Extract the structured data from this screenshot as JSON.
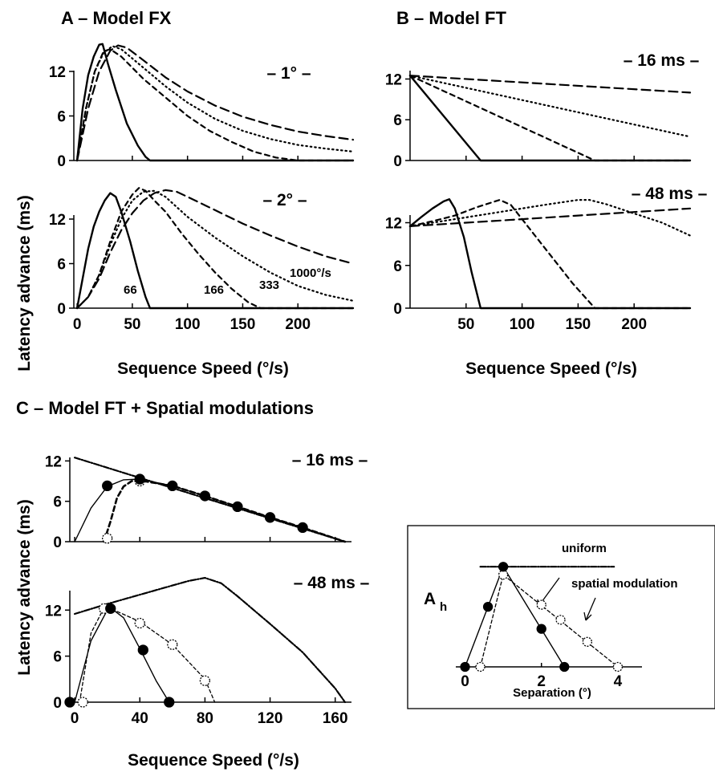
{
  "chart_data": [
    {
      "id": "A",
      "type": "line",
      "title": "A – Model FX",
      "xlabel": "Sequence Speed (°/s)",
      "ylabel": "Latency advance (ms)",
      "xlim": [
        -3,
        250
      ],
      "ylim": [
        0,
        16
      ],
      "xticks": [
        0,
        50,
        100,
        150,
        200
      ],
      "subplots": [
        {
          "label": "– 1° –",
          "yticks": [
            0,
            6,
            12
          ],
          "series": [
            {
              "style": "solid",
              "x": [
                0,
                5,
                10,
                15,
                20,
                23,
                28,
                35,
                45,
                55,
                62,
                66,
                250
              ],
              "y": [
                0,
                7,
                11.5,
                14,
                15.6,
                15.7,
                13,
                9.5,
                5,
                2,
                0.5,
                0,
                0
              ]
            },
            {
              "style": "dashed",
              "x": [
                0,
                8,
                16,
                24,
                30,
                40,
                60,
                80,
                100,
                120,
                140,
                160,
                180,
                200,
                250
              ],
              "y": [
                0,
                7,
                12,
                14.7,
                15,
                14,
                11,
                8.5,
                6,
                4,
                2.5,
                1.2,
                0.4,
                0,
                0
              ]
            },
            {
              "style": "dotted",
              "x": [
                0,
                8,
                16,
                24,
                32,
                40,
                60,
                80,
                100,
                125,
                150,
                175,
                200,
                225,
                250
              ],
              "y": [
                0,
                7,
                12,
                14.5,
                15.4,
                15,
                12.5,
                10,
                7.8,
                5.6,
                4,
                2.9,
                2.1,
                1.6,
                1.2
              ]
            },
            {
              "style": "longdash",
              "x": [
                0,
                10,
                20,
                30,
                37,
                45,
                60,
                80,
                100,
                125,
                150,
                175,
                200,
                225,
                250
              ],
              "y": [
                0,
                7,
                12,
                14.8,
                15.5,
                15.2,
                13.5,
                11.2,
                9.3,
                7.4,
                5.9,
                4.8,
                3.9,
                3.3,
                2.8
              ]
            }
          ]
        },
        {
          "label": "– 2° –",
          "yticks": [
            0,
            6,
            12
          ],
          "annotations": [
            "66",
            "166",
            "333",
            "1000°/s"
          ],
          "series": [
            {
              "style": "solid",
              "x": [
                0,
                5,
                10,
                15,
                20,
                25,
                30,
                35,
                40,
                48,
                55,
                62,
                66,
                250
              ],
              "y": [
                0,
                4,
                8,
                11,
                13,
                14.5,
                15.5,
                15,
                13,
                9,
                5,
                1.5,
                0,
                0
              ]
            },
            {
              "style": "dashed",
              "x": [
                0,
                10,
                20,
                30,
                40,
                50,
                56,
                62,
                70,
                80,
                95,
                110,
                125,
                140,
                155,
                166,
                250
              ],
              "y": [
                0,
                1.5,
                4.5,
                9,
                13,
                15.3,
                16.2,
                15.8,
                14.5,
                13,
                10,
                7.3,
                4.8,
                2.6,
                0.8,
                0,
                0
              ]
            },
            {
              "style": "dotted",
              "x": [
                0,
                10,
                20,
                30,
                40,
                50,
                60,
                70,
                80,
                100,
                125,
                150,
                175,
                200,
                225,
                250
              ],
              "y": [
                0,
                1.5,
                4.5,
                8.5,
                12,
                14.5,
                15.7,
                15.8,
                15,
                12.3,
                9.5,
                7,
                4.8,
                3,
                1.8,
                1
              ]
            },
            {
              "style": "longdash",
              "x": [
                0,
                10,
                20,
                30,
                40,
                50,
                60,
                70,
                80,
                90,
                100,
                125,
                150,
                175,
                200,
                225,
                250
              ],
              "y": [
                0,
                1.5,
                4,
                7.5,
                10.5,
                12.8,
                14.5,
                15.5,
                15.9,
                15.7,
                15,
                13.2,
                11.4,
                9.8,
                8.3,
                7,
                6
              ]
            }
          ]
        }
      ]
    },
    {
      "id": "B",
      "type": "line",
      "title": "B – Model FT",
      "xlabel": "Sequence Speed (°/s)",
      "xlim": [
        0,
        250
      ],
      "ylim": [
        0,
        16
      ],
      "xticks": [
        50,
        100,
        150,
        200
      ],
      "subplots": [
        {
          "label": "– 16 ms –",
          "yticks": [
            0,
            6,
            12
          ],
          "ylim": [
            0,
            13
          ],
          "series": [
            {
              "style": "solid",
              "x": [
                0,
                63,
                250
              ],
              "y": [
                12.5,
                0,
                0
              ]
            },
            {
              "style": "dashed",
              "x": [
                0,
                165,
                250
              ],
              "y": [
                12.5,
                0,
                0
              ]
            },
            {
              "style": "dotted",
              "x": [
                0,
                250
              ],
              "y": [
                12.5,
                3.5
              ]
            },
            {
              "style": "longdash",
              "x": [
                0,
                250
              ],
              "y": [
                12.5,
                10
              ]
            }
          ]
        },
        {
          "label": "– 48 ms –",
          "yticks": [
            0,
            6,
            12
          ],
          "ylim": [
            0,
            16
          ],
          "series": [
            {
              "style": "solid",
              "x": [
                0,
                10,
                20,
                30,
                35,
                40,
                48,
                55,
                63,
                250
              ],
              "y": [
                11.5,
                12.8,
                14,
                15,
                15.3,
                14,
                10,
                5,
                0,
                0
              ]
            },
            {
              "style": "dashed",
              "x": [
                0,
                20,
                40,
                60,
                80,
                90,
                100,
                115,
                130,
                145,
                165,
                250
              ],
              "y": [
                11.5,
                12.2,
                13,
                14.2,
                15.2,
                14.5,
                12.5,
                9.5,
                6.5,
                3.5,
                0,
                0
              ]
            },
            {
              "style": "dotted",
              "x": [
                0,
                40,
                80,
                120,
                150,
                160,
                175,
                200,
                225,
                250
              ],
              "y": [
                11.5,
                12.5,
                13.5,
                14.5,
                15.2,
                15.2,
                14.6,
                13.3,
                12,
                10.2
              ]
            },
            {
              "style": "longdash",
              "x": [
                0,
                50,
                100,
                150,
                200,
                250
              ],
              "y": [
                11.5,
                12,
                12.5,
                13,
                13.5,
                14
              ]
            }
          ]
        }
      ]
    },
    {
      "id": "C",
      "type": "line",
      "title": "C – Model FT + Spatial modulations",
      "xlabel": "Sequence Speed (°/s)",
      "ylabel": "Latency advance (ms)",
      "xlim": [
        -3,
        170
      ],
      "ylim": [
        0,
        16
      ],
      "xticks": [
        0,
        40,
        80,
        120,
        160
      ],
      "subplots": [
        {
          "label": "– 16 ms –",
          "yticks": [
            0,
            6,
            12
          ],
          "ylim": [
            0,
            13
          ],
          "series": [
            {
              "style": "dashdot",
              "x": [
                0,
                166
              ],
              "y": [
                12.5,
                0
              ]
            },
            {
              "style": "solid-thin",
              "x": [
                0,
                10,
                20,
                30,
                40,
                60,
                80,
                100,
                120,
                140,
                160,
                166
              ],
              "y": [
                0,
                5,
                8.2,
                9.2,
                9.3,
                8.3,
                6.8,
                5.2,
                3.6,
                2.1,
                0.5,
                0
              ]
            },
            {
              "style": "dashed-thick",
              "x": [
                18,
                22,
                26,
                30,
                35,
                40,
                60,
                80,
                100,
                120,
                140,
                166
              ],
              "y": [
                0,
                3,
                6.5,
                8.2,
                9,
                9.1,
                8.3,
                6.8,
                5.2,
                3.6,
                2.1,
                0
              ]
            }
          ],
          "markers_filled": {
            "x": [
              20,
              40,
              60,
              80,
              100,
              120,
              140
            ],
            "y": [
              8.3,
              9.3,
              8.3,
              6.8,
              5.2,
              3.6,
              2.1
            ]
          },
          "markers_open": {
            "x": [
              20,
              40
            ],
            "y": [
              0.5,
              9.0
            ]
          }
        },
        {
          "label": "– 48 ms –",
          "yticks": [
            0,
            6,
            12
          ],
          "ylim": [
            0,
            16
          ],
          "series": [
            {
              "style": "dashdot",
              "x": [
                0,
                20,
                40,
                60,
                70,
                80,
                90,
                100,
                120,
                140,
                160,
                166
              ],
              "y": [
                11.5,
                12.8,
                14,
                15.2,
                15.8,
                16.2,
                15.5,
                13.8,
                10.2,
                6.5,
                1.8,
                0
              ]
            },
            {
              "style": "solid-thin",
              "x": [
                0,
                10,
                20,
                22,
                30,
                40,
                50,
                58
              ],
              "y": [
                0,
                8,
                12,
                12.3,
                11,
                7,
                2.8,
                0
              ]
            },
            {
              "style": "dashed-thin",
              "x": [
                3,
                10,
                18,
                22,
                40,
                60,
                80,
                86
              ],
              "y": [
                0,
                9,
                12.3,
                12.2,
                10.5,
                7.5,
                3,
                0
              ]
            }
          ],
          "markers_filled": {
            "x": [
              -3,
              22,
              42,
              58
            ],
            "y": [
              0,
              12.2,
              6.8,
              0
            ]
          },
          "markers_open": {
            "x": [
              5,
              18,
              40,
              60,
              80
            ],
            "y": [
              0,
              12.2,
              10.3,
              7.5,
              2.8
            ]
          }
        }
      ]
    },
    {
      "id": "inset",
      "type": "line",
      "xlabel": "Separation (°)",
      "ylabel": "A",
      "ylabel_subscript": "h",
      "xlim": [
        -0.2,
        4.8
      ],
      "ylim": [
        0,
        1.05
      ],
      "xticks": [
        0,
        2,
        4
      ],
      "labels": {
        "uniform": "uniform",
        "spatial": "spatial modulation"
      },
      "series": [
        {
          "style": "dashdot",
          "x": [
            0.4,
            3.9
          ],
          "y": [
            1.0,
            1.0
          ]
        },
        {
          "style": "solid-thin",
          "x": [
            0,
            0.6,
            1.0,
            2.6
          ],
          "y": [
            0,
            0.6,
            1.0,
            0
          ]
        },
        {
          "style": "dashed-thin",
          "x": [
            0.4,
            1.0,
            4.0
          ],
          "y": [
            0,
            0.92,
            0
          ]
        }
      ],
      "markers_filled": {
        "x": [
          0,
          0.6,
          1.0,
          2.0,
          2.6
        ],
        "y": [
          0,
          0.6,
          1.0,
          0.38,
          0
        ]
      },
      "markers_open": {
        "x": [
          0.4,
          1.0,
          2.0,
          2.5,
          3.2,
          4.0
        ],
        "y": [
          0,
          0.92,
          0.62,
          0.47,
          0.25,
          0
        ]
      }
    }
  ]
}
